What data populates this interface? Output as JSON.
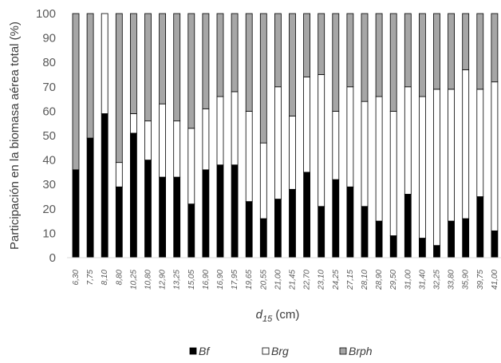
{
  "chart_data": {
    "type": "bar",
    "stacked": true,
    "title": "",
    "ylabel": "Participación en la biomasa aérea total (%)",
    "xlabel": {
      "main": "d",
      "sub": "15",
      "unit": " (cm)"
    },
    "ylim": [
      0,
      100
    ],
    "yticks": [
      0,
      10,
      20,
      30,
      40,
      50,
      60,
      70,
      80,
      90,
      100
    ],
    "grid": false,
    "legend_position": "bottom",
    "categories": [
      "6,30",
      "7,75",
      "8,10",
      "8,80",
      "10,25",
      "10,80",
      "12,90",
      "13,25",
      "15,05",
      "16,90",
      "16,90",
      "17,95",
      "19,65",
      "20,55",
      "21,00",
      "21,45",
      "22,70",
      "23,10",
      "24,25",
      "27,15",
      "28,10",
      "28,90",
      "29,50",
      "31,00",
      "31,40",
      "32,25",
      "33,80",
      "35,90",
      "39,75",
      "41,00"
    ],
    "series": [
      {
        "name": "Bf",
        "color": "#000000",
        "values": [
          36,
          49,
          59,
          29,
          51,
          40,
          33,
          33,
          22,
          36,
          38,
          38,
          23,
          16,
          24,
          28,
          35,
          21,
          32,
          29,
          21,
          15,
          9,
          26,
          8,
          5,
          15,
          16,
          25,
          11
        ]
      },
      {
        "name": "Brg",
        "color": "#ffffff",
        "values": [
          0,
          0,
          41,
          10,
          8,
          16,
          30,
          23,
          31,
          25,
          28,
          30,
          37,
          31,
          46,
          30,
          39,
          54,
          28,
          41,
          43,
          51,
          51,
          44,
          58,
          64,
          54,
          61,
          44,
          61
        ]
      },
      {
        "name": "Brph",
        "color": "#a6a6a6",
        "values": [
          64,
          51,
          0,
          61,
          41,
          44,
          37,
          44,
          47,
          39,
          34,
          32,
          40,
          53,
          30,
          42,
          26,
          25,
          40,
          30,
          36,
          34,
          40,
          30,
          34,
          31,
          31,
          23,
          31,
          28
        ]
      }
    ]
  }
}
